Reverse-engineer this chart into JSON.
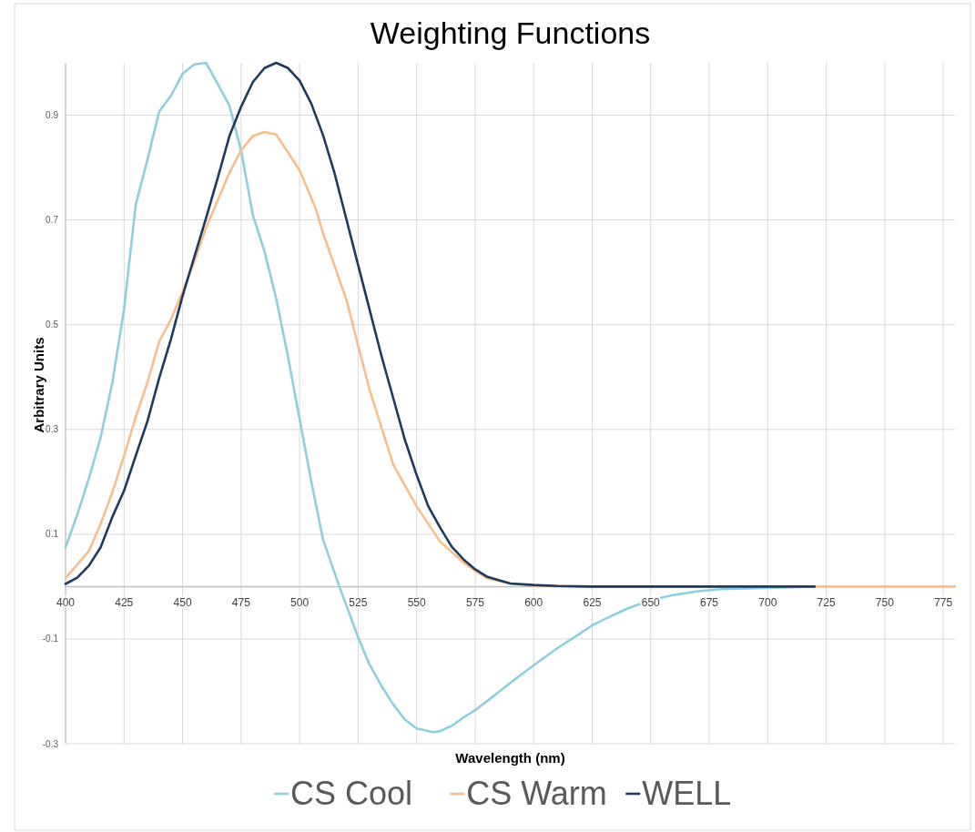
{
  "chart_data": {
    "type": "line",
    "title": "Weighting Functions",
    "xlabel": "Wavelength (nm)",
    "ylabel": "Arbitrary Units",
    "xlim": [
      400,
      780
    ],
    "xticks": [
      400,
      425,
      450,
      475,
      500,
      525,
      550,
      575,
      600,
      625,
      650,
      675,
      700,
      725,
      750,
      775
    ],
    "ylim": [
      -0.3,
      1.0
    ],
    "yticks": [
      -0.3,
      -0.1,
      0.1,
      0.3,
      0.5,
      0.7,
      0.9
    ],
    "grid": true,
    "legend": "bottom",
    "line_style": "solid",
    "marker": "none",
    "series": [
      {
        "name": "CS Cool",
        "color": "#8ecfdd",
        "x": [
          400,
          405,
          410,
          415,
          420,
          425,
          430,
          435,
          440,
          445,
          450,
          455,
          460,
          465,
          470,
          475,
          480,
          485,
          490,
          495,
          500,
          505,
          510,
          517,
          525,
          530,
          535,
          540,
          545,
          550,
          557,
          560,
          565,
          570,
          575,
          580,
          590,
          600,
          610,
          620,
          625,
          630,
          640,
          650,
          660,
          670,
          680,
          720
        ],
        "values": [
          0.075,
          0.137,
          0.207,
          0.285,
          0.39,
          0.53,
          0.73,
          0.815,
          0.907,
          0.937,
          0.979,
          0.997,
          1.0,
          0.96,
          0.918,
          0.833,
          0.71,
          0.64,
          0.55,
          0.44,
          0.32,
          0.2,
          0.09,
          0,
          -0.097,
          -0.15,
          -0.19,
          -0.225,
          -0.254,
          -0.271,
          -0.278,
          -0.276,
          -0.266,
          -0.25,
          -0.236,
          -0.219,
          -0.184,
          -0.15,
          -0.118,
          -0.089,
          -0.074,
          -0.063,
          -0.042,
          -0.026,
          -0.016,
          -0.009,
          -0.005,
          0
        ]
      },
      {
        "name": "CS Warm",
        "color": "#f8bd8a",
        "x": [
          400,
          405,
          410,
          415,
          420,
          425,
          430,
          435,
          440,
          445,
          450,
          455,
          460,
          465,
          470,
          475,
          480,
          485,
          490,
          500,
          507,
          510,
          520,
          525,
          530,
          540,
          550,
          560,
          570,
          575,
          580,
          590,
          600,
          620,
          650,
          700,
          780
        ],
        "values": [
          0.016,
          0.042,
          0.068,
          0.12,
          0.18,
          0.25,
          0.324,
          0.39,
          0.468,
          0.51,
          0.563,
          0.62,
          0.685,
          0.737,
          0.79,
          0.833,
          0.86,
          0.868,
          0.863,
          0.795,
          0.72,
          0.675,
          0.548,
          0.46,
          0.374,
          0.233,
          0.153,
          0.086,
          0.046,
          0.03,
          0.016,
          0.006,
          0.002,
          0,
          0,
          0,
          0
        ]
      },
      {
        "name": "WELL",
        "color": "#1f3a5f",
        "x": [
          400,
          405,
          410,
          415,
          420,
          425,
          430,
          435,
          440,
          445,
          450,
          455,
          460,
          465,
          470,
          475,
          480,
          485,
          490,
          495,
          500,
          505,
          510,
          515,
          520,
          525,
          530,
          535,
          540,
          545,
          550,
          555,
          560,
          565,
          570,
          575,
          580,
          590,
          600,
          610,
          625,
          650,
          720
        ],
        "values": [
          0.005,
          0.017,
          0.04,
          0.075,
          0.133,
          0.183,
          0.25,
          0.316,
          0.398,
          0.472,
          0.555,
          0.629,
          0.703,
          0.78,
          0.86,
          0.916,
          0.963,
          0.99,
          1.0,
          0.99,
          0.966,
          0.922,
          0.862,
          0.788,
          0.701,
          0.614,
          0.527,
          0.44,
          0.36,
          0.28,
          0.213,
          0.153,
          0.113,
          0.076,
          0.052,
          0.033,
          0.019,
          0.006,
          0.003,
          0.001,
          0,
          0,
          0
        ]
      }
    ]
  }
}
